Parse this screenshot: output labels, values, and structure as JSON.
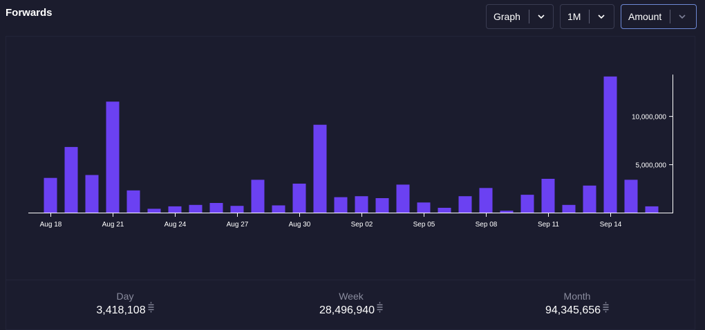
{
  "header": {
    "title": "Forwards"
  },
  "controls": {
    "view": "Graph",
    "range": "1M",
    "metric": "Amount"
  },
  "icons": {
    "dropdown": "chevron-down-icon",
    "unit": "sats-icon"
  },
  "colors": {
    "bar": "#6b41f2",
    "background": "#1b1c2d",
    "axis": "#ffffff"
  },
  "chart_data": {
    "type": "bar",
    "x_tick_labels": [
      "Aug 18",
      "Aug 21",
      "Aug 24",
      "Aug 27",
      "Aug 30",
      "Sep 02",
      "Sep 05",
      "Sep 08",
      "Sep 11",
      "Sep 14"
    ],
    "categories": [
      "Aug 18",
      "Aug 19",
      "Aug 20",
      "Aug 21",
      "Aug 22",
      "Aug 23",
      "Aug 24",
      "Aug 25",
      "Aug 26",
      "Aug 27",
      "Aug 28",
      "Aug 29",
      "Aug 30",
      "Aug 31",
      "Sep 01",
      "Sep 02",
      "Sep 03",
      "Sep 04",
      "Sep 05",
      "Sep 06",
      "Sep 07",
      "Sep 08",
      "Sep 09",
      "Sep 10",
      "Sep 11",
      "Sep 12",
      "Sep 13",
      "Sep 14",
      "Sep 15",
      "Sep 16"
    ],
    "values": [
      3600000,
      6800000,
      3900000,
      11500000,
      2300000,
      400000,
      650000,
      800000,
      1000000,
      700000,
      3400000,
      750000,
      3000000,
      9100000,
      1600000,
      1700000,
      1500000,
      2900000,
      1050000,
      500000,
      1700000,
      2550000,
      200000,
      1850000,
      3500000,
      800000,
      2800000,
      14100000,
      3400000,
      650000
    ],
    "y_tick_labels": [
      "5,000,000",
      "10,000,000"
    ],
    "y_ticks": [
      5000000,
      10000000
    ],
    "ylim": [
      0,
      14300000
    ],
    "xlabel": "",
    "ylabel": ""
  },
  "stats": {
    "day_label": "Day",
    "day_value": "3,418,108",
    "week_label": "Week",
    "week_value": "28,496,940",
    "month_label": "Month",
    "month_value": "94,345,656"
  }
}
